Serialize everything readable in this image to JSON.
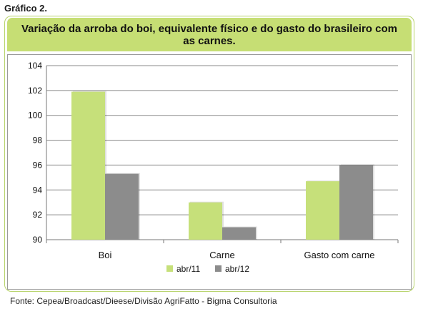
{
  "figure_label": "Gráfico 2.",
  "source": "Fonte: Cepea/Broadcast/Dieese/Divisão AgriFatto - Bigma Consultoria",
  "colors": {
    "series1": "#c6e07a",
    "series2": "#8c8c8c",
    "title_bg": "#c6de74"
  },
  "chart_data": {
    "type": "bar",
    "title": "Variação da arroba do boi, equivalente físico e do gasto do brasileiro com as carnes.",
    "categories": [
      "Boi",
      "Carne",
      "Gasto com carne"
    ],
    "series": [
      {
        "name": "abr/11",
        "values": [
          101.9,
          93.0,
          94.7
        ]
      },
      {
        "name": "abr/12",
        "values": [
          95.3,
          91.0,
          96.0
        ]
      }
    ],
    "ylim": [
      90,
      104
    ],
    "yticks": [
      90,
      92,
      94,
      96,
      98,
      100,
      102,
      104
    ],
    "grid": true,
    "legend_position": "bottom"
  }
}
